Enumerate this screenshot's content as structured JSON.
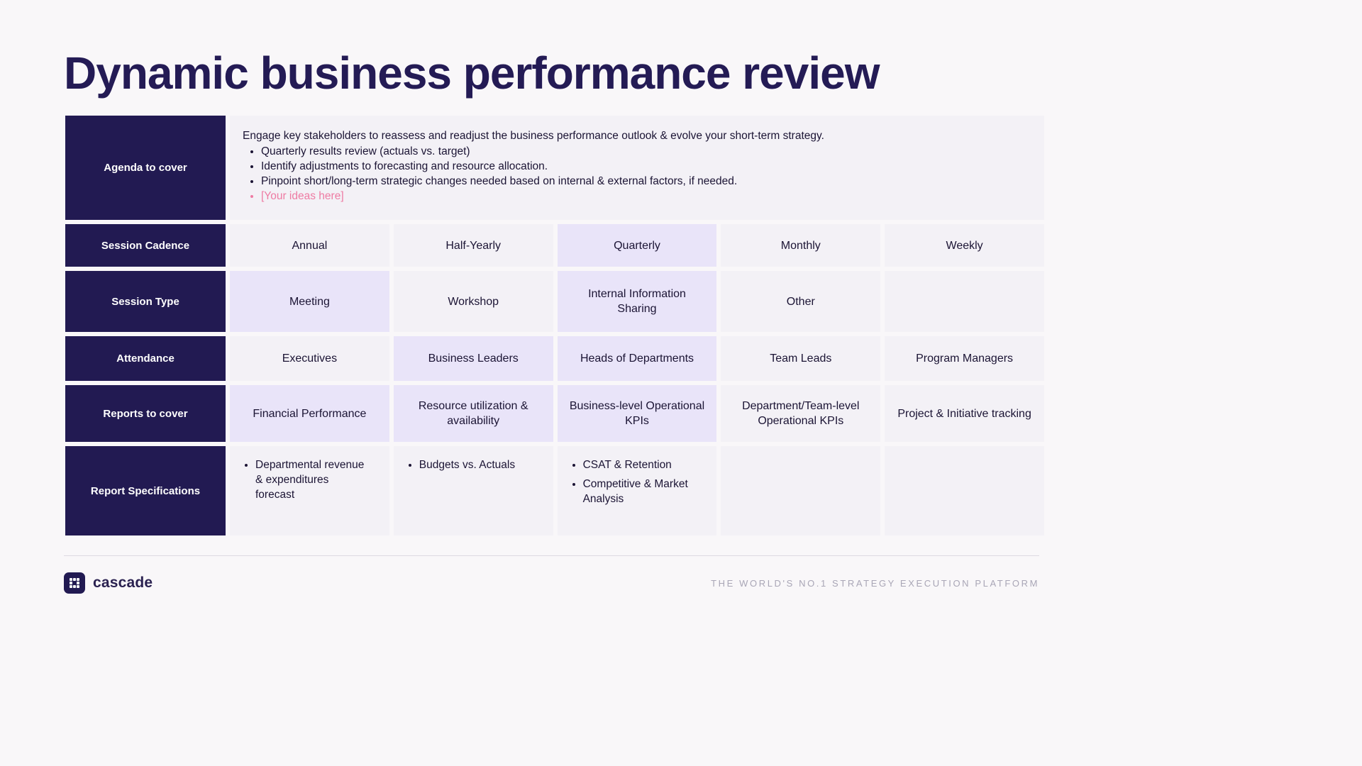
{
  "title": "Dynamic business performance review",
  "agenda": {
    "header": "Agenda to cover",
    "intro": "Engage key stakeholders to reassess and readjust the business performance outlook & evolve your short-term strategy.",
    "bullets": [
      "Quarterly results review (actuals vs. target)",
      "Identify adjustments to forecasting and resource allocation.",
      "Pinpoint short/long-term strategic changes needed based on internal & external factors, if needed."
    ],
    "placeholder": "[Your ideas here]"
  },
  "rows": [
    {
      "header": "Session Cadence",
      "cells": [
        {
          "text": "Annual",
          "highlight": false
        },
        {
          "text": "Half-Yearly",
          "highlight": false
        },
        {
          "text": "Quarterly",
          "highlight": true
        },
        {
          "text": "Monthly",
          "highlight": false
        },
        {
          "text": "Weekly",
          "highlight": false
        }
      ]
    },
    {
      "header": "Session Type",
      "cells": [
        {
          "text": "Meeting",
          "highlight": true
        },
        {
          "text": "Workshop",
          "highlight": false
        },
        {
          "text": "Internal Information Sharing",
          "highlight": true
        },
        {
          "text": "Other",
          "highlight": false
        },
        {
          "text": "",
          "highlight": false
        }
      ]
    },
    {
      "header": "Attendance",
      "cells": [
        {
          "text": "Executives",
          "highlight": false
        },
        {
          "text": "Business Leaders",
          "highlight": true
        },
        {
          "text": "Heads of Departments",
          "highlight": true
        },
        {
          "text": "Team Leads",
          "highlight": false
        },
        {
          "text": "Program Managers",
          "highlight": false
        }
      ]
    },
    {
      "header": "Reports to cover",
      "cells": [
        {
          "text": "Financial Performance",
          "highlight": true
        },
        {
          "text": "Resource utilization & availability",
          "highlight": true
        },
        {
          "text": "Business-level Operational KPIs",
          "highlight": true
        },
        {
          "text": "Department/Team-level Operational KPIs",
          "highlight": false
        },
        {
          "text": "Project & Initiative tracking",
          "highlight": false
        }
      ]
    },
    {
      "header": "Report Specifications",
      "cells": [
        {
          "bullets": [
            "Departmental revenue & expenditures forecast"
          ],
          "highlight": false
        },
        {
          "bullets": [
            "Budgets vs. Actuals"
          ],
          "highlight": false
        },
        {
          "bullets": [
            "CSAT & Retention",
            "Competitive & Market Analysis"
          ],
          "highlight": false
        },
        {
          "bullets": [],
          "highlight": false
        },
        {
          "bullets": [],
          "highlight": false
        }
      ]
    }
  ],
  "footer": {
    "brand": "cascade",
    "tagline": "THE WORLD'S NO.1 STRATEGY EXECUTION PLATFORM"
  },
  "colors": {
    "title_color": "#241b55",
    "header_bg": "#221a52",
    "cell_bg": "#f3f1f6",
    "cell_highlight": "#e9e4f9",
    "accent_pink": "#ee7ba3",
    "tagline_color": "#a9a6b6"
  }
}
